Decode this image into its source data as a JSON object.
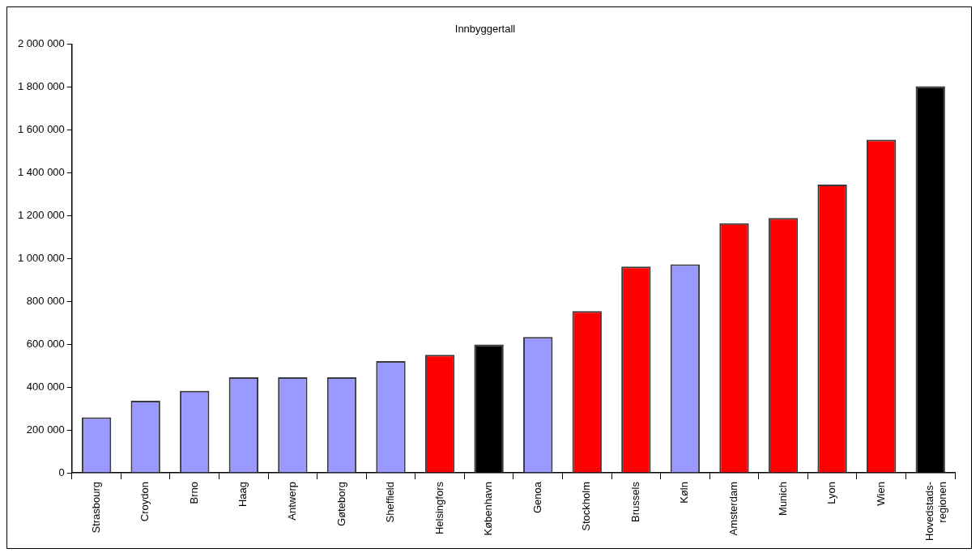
{
  "chart_data": {
    "type": "bar",
    "title": "Innbyggertall",
    "categories": [
      "Strasbourg",
      "Croydon",
      "Brno",
      "Haag",
      "Antwerp",
      "Gøteborg",
      "Sheffield",
      "Helsingfors",
      "København",
      "Genoa",
      "Stockholm",
      "Brussels",
      "Køln",
      "Amsterdam",
      "Munich",
      "Lyon",
      "Wien",
      "Hovedstads-\nregionen"
    ],
    "values": [
      259000,
      336000,
      383000,
      446000,
      446000,
      446000,
      521000,
      551000,
      599000,
      634000,
      755000,
      962000,
      973000,
      1165000,
      1189000,
      1345000,
      1555000,
      1804000
    ],
    "colors": [
      "#9999ff",
      "#9999ff",
      "#9999ff",
      "#9999ff",
      "#9999ff",
      "#9999ff",
      "#9999ff",
      "#ff0000",
      "#000000",
      "#9999ff",
      "#ff0000",
      "#ff0000",
      "#9999ff",
      "#ff0000",
      "#ff0000",
      "#ff0000",
      "#ff0000",
      "#000000"
    ],
    "ylim": [
      0,
      2000000
    ],
    "yticks": [
      {
        "value": 0,
        "label": "0"
      },
      {
        "value": 200000,
        "label": "200 000"
      },
      {
        "value": 400000,
        "label": "400 000"
      },
      {
        "value": 600000,
        "label": "600 000"
      },
      {
        "value": 800000,
        "label": "800 000"
      },
      {
        "value": 1000000,
        "label": "1 000 000"
      },
      {
        "value": 1200000,
        "label": "1 200 000"
      },
      {
        "value": 1400000,
        "label": "1 400 000"
      },
      {
        "value": 1600000,
        "label": "1 600 000"
      },
      {
        "value": 1800000,
        "label": "1 800 000"
      },
      {
        "value": 2000000,
        "label": "2 000 000"
      }
    ],
    "grid": false,
    "legend": false
  }
}
